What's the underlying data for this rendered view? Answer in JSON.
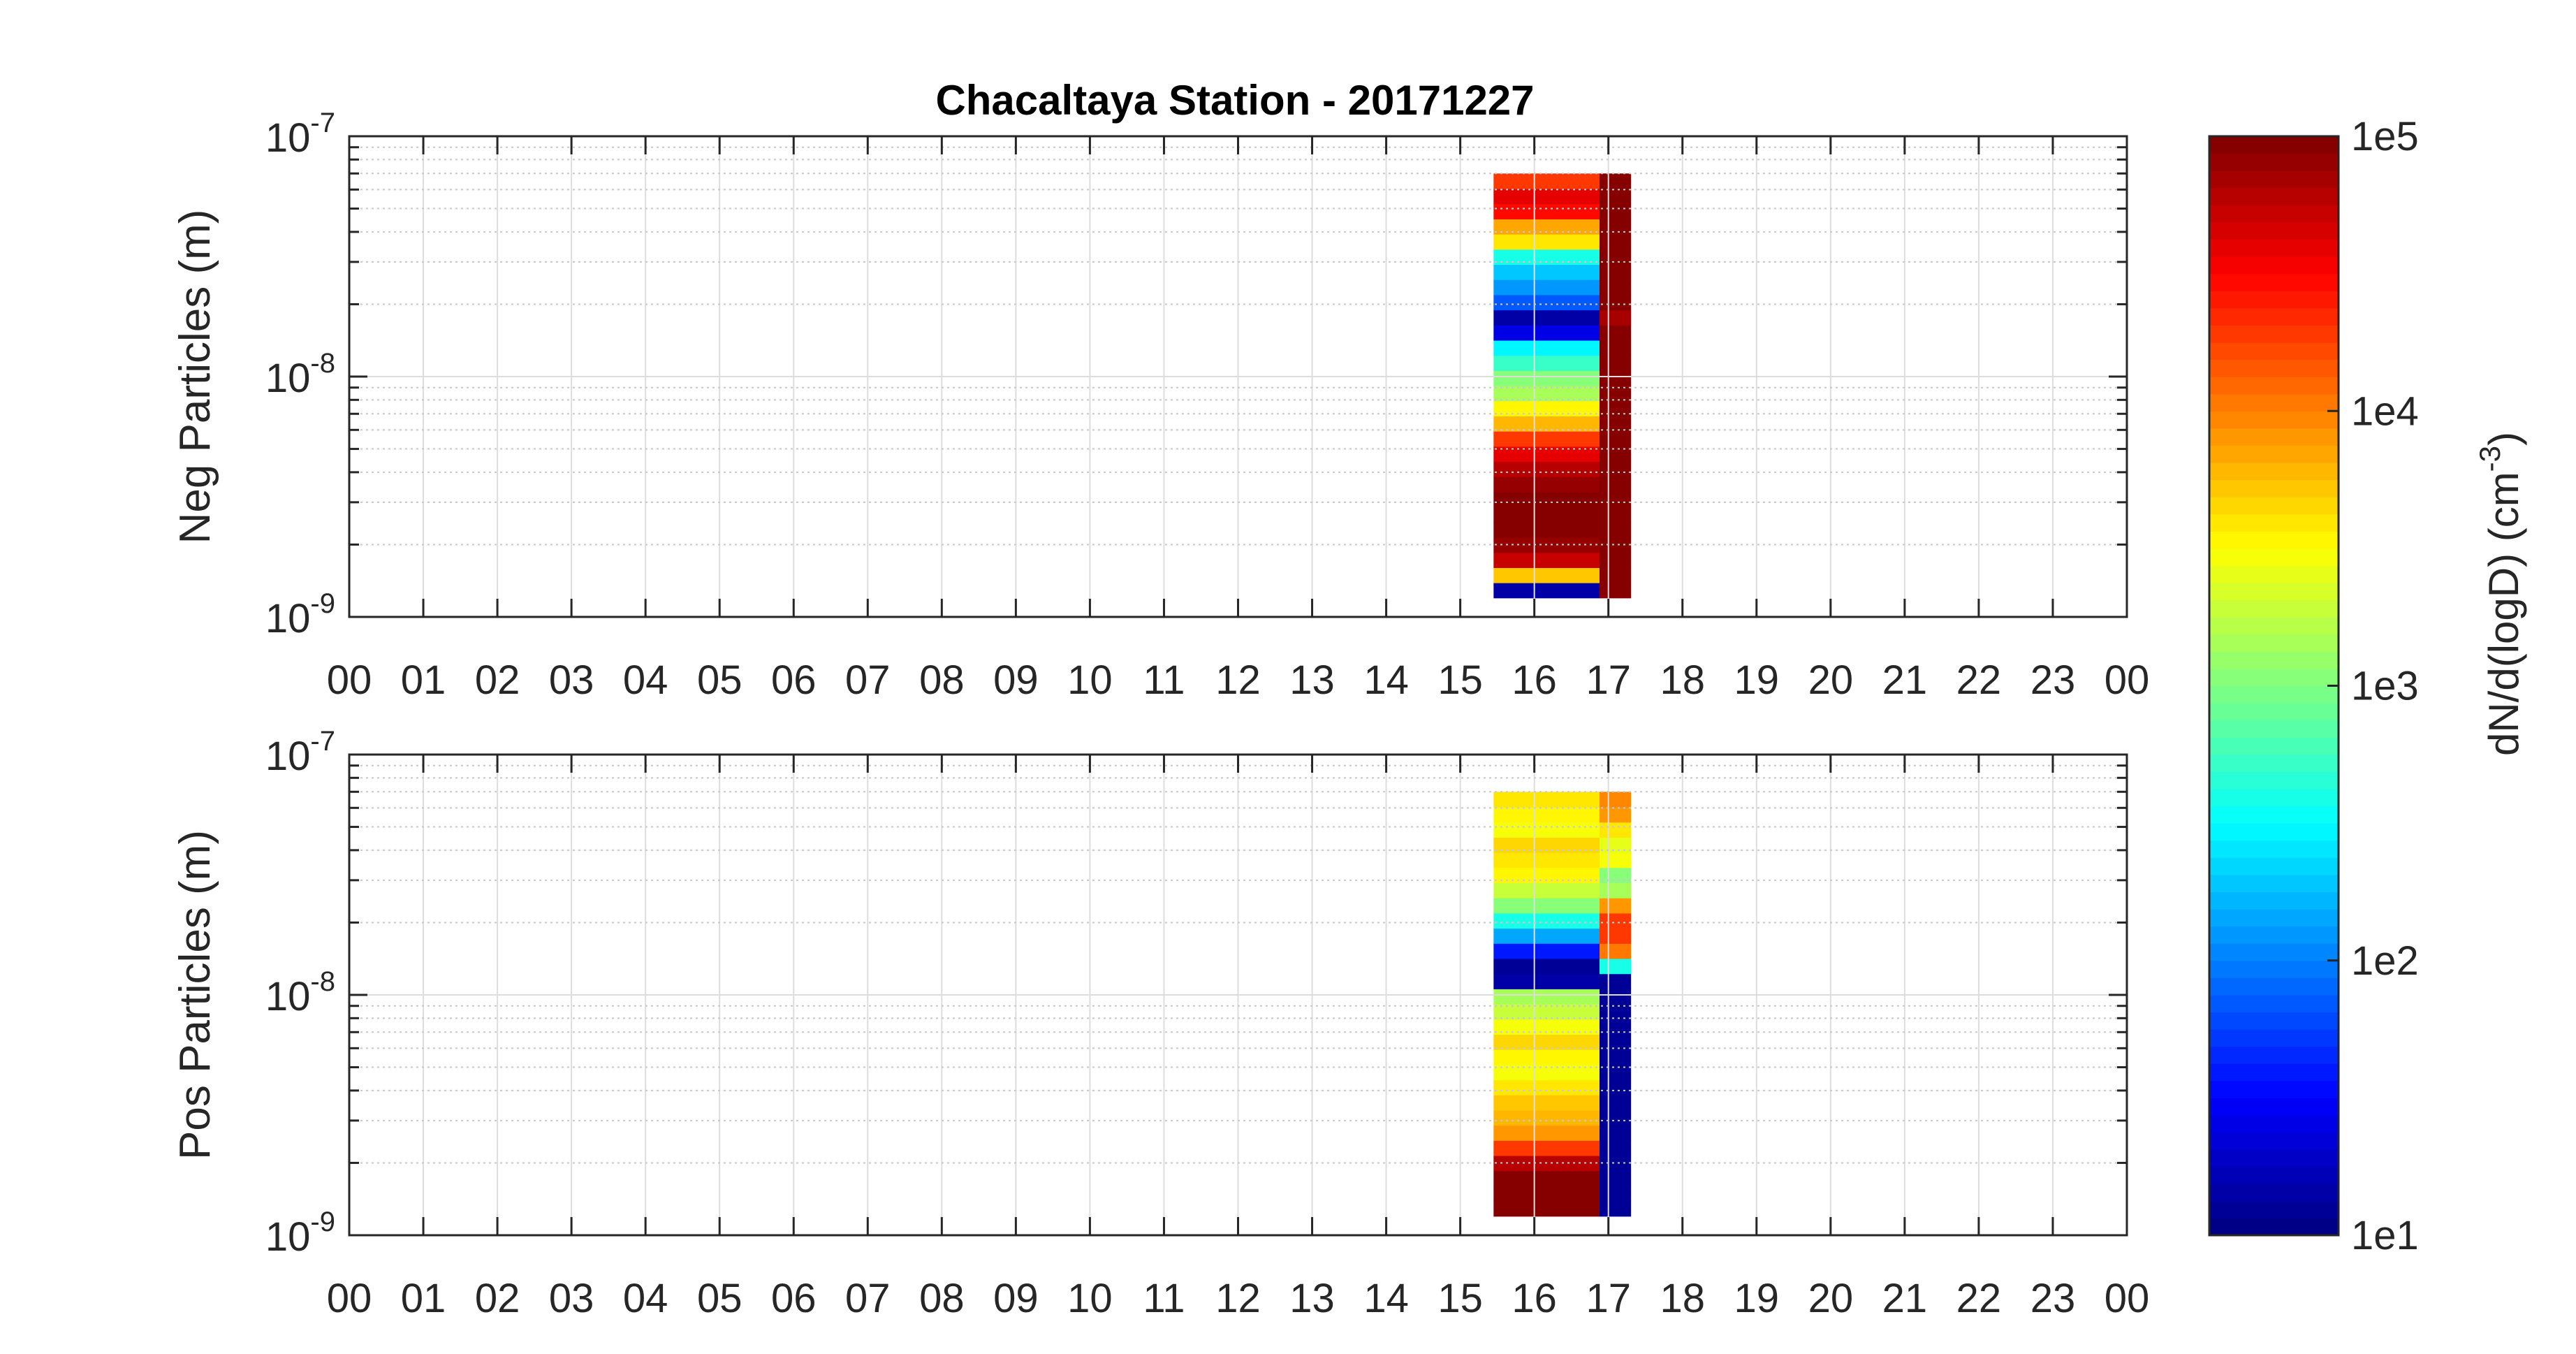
{
  "figure": {
    "title": "Chacaltaya Station - 20171227",
    "colorbar": {
      "label_main": "dN/d(logD) (cm",
      "label_exp": "-3",
      "label_close": ")",
      "ticks": [
        {
          "value": 10,
          "label": "1e1"
        },
        {
          "value": 100,
          "label": "1e2"
        },
        {
          "value": 1000,
          "label": "1e3"
        },
        {
          "value": 10000,
          "label": "1e4"
        },
        {
          "value": 100000,
          "label": "1e5"
        }
      ],
      "range": [
        10,
        100000
      ],
      "scale": "log",
      "colormap": "jet"
    }
  },
  "chart_data": [
    {
      "type": "heatmap",
      "ylabel": "Neg Particles (m)",
      "yscale": "log",
      "ylim": [
        1e-09,
        1e-07
      ],
      "ytick_labels": [
        {
          "mant": "10",
          "exp": "-9",
          "value": 1e-09
        },
        {
          "mant": "10",
          "exp": "-8",
          "value": 1e-08
        },
        {
          "mant": "10",
          "exp": "-7",
          "value": 1e-07
        }
      ],
      "xlim": [
        0,
        24
      ],
      "xtick_labels": [
        "00",
        "01",
        "02",
        "03",
        "04",
        "05",
        "06",
        "07",
        "08",
        "09",
        "10",
        "11",
        "12",
        "13",
        "14",
        "15",
        "16",
        "17",
        "18",
        "19",
        "20",
        "21",
        "22",
        "23",
        "00"
      ],
      "grid": true,
      "size_bins": {
        "lower": 1.2e-09,
        "upper": 7e-08,
        "count": 28
      },
      "columns": [
        {
          "t_start": 15.45,
          "t_end": 16.88,
          "values": [
            15,
            5000,
            50000,
            80000,
            100000,
            100000,
            100000,
            80000,
            60000,
            40000,
            18000,
            6000,
            3500,
            1500,
            1000,
            500,
            300,
            25,
            15,
            70,
            120,
            200,
            400,
            4000,
            7000,
            30000,
            40000,
            20000
          ]
        },
        {
          "t_start": 16.88,
          "t_end": 17.3,
          "values": [
            100000,
            100000,
            100000,
            100000,
            100000,
            100000,
            100000,
            100000,
            100000,
            100000,
            100000,
            100000,
            100000,
            100000,
            100000,
            100000,
            100000,
            100000,
            70000,
            100000,
            100000,
            100000,
            100000,
            100000,
            100000,
            100000,
            100000,
            100000
          ]
        }
      ]
    },
    {
      "type": "heatmap",
      "ylabel": "Pos Particles (m)",
      "yscale": "log",
      "ylim": [
        1e-09,
        1e-07
      ],
      "ytick_labels": [
        {
          "mant": "10",
          "exp": "-9",
          "value": 1e-09
        },
        {
          "mant": "10",
          "exp": "-8",
          "value": 1e-08
        },
        {
          "mant": "10",
          "exp": "-7",
          "value": 1e-07
        }
      ],
      "xlim": [
        0,
        24
      ],
      "xtick_labels": [
        "00",
        "01",
        "02",
        "03",
        "04",
        "05",
        "06",
        "07",
        "08",
        "09",
        "10",
        "11",
        "12",
        "13",
        "14",
        "15",
        "16",
        "17",
        "18",
        "19",
        "20",
        "21",
        "22",
        "23",
        "00"
      ],
      "grid": true,
      "size_bins": {
        "lower": 1.2e-09,
        "upper": 7e-08,
        "count": 28
      },
      "columns": [
        {
          "t_start": 15.45,
          "t_end": 16.88,
          "values": [
            100000,
            100000,
            100000,
            60000,
            20000,
            8000,
            6000,
            5000,
            4000,
            3000,
            3500,
            4500,
            3000,
            2000,
            1500,
            15,
            12,
            40,
            150,
            400,
            1000,
            2000,
            3500,
            4000,
            4500,
            3000,
            3500,
            4000
          ]
        },
        {
          "t_start": 16.88,
          "t_end": 17.3,
          "values": [
            12,
            12,
            12,
            12,
            12,
            12,
            12,
            12,
            12,
            12,
            12,
            12,
            12,
            12,
            12,
            12,
            400,
            10000,
            20000,
            20000,
            8000,
            1500,
            1000,
            3000,
            2500,
            4000,
            8000,
            9000
          ]
        }
      ]
    }
  ]
}
